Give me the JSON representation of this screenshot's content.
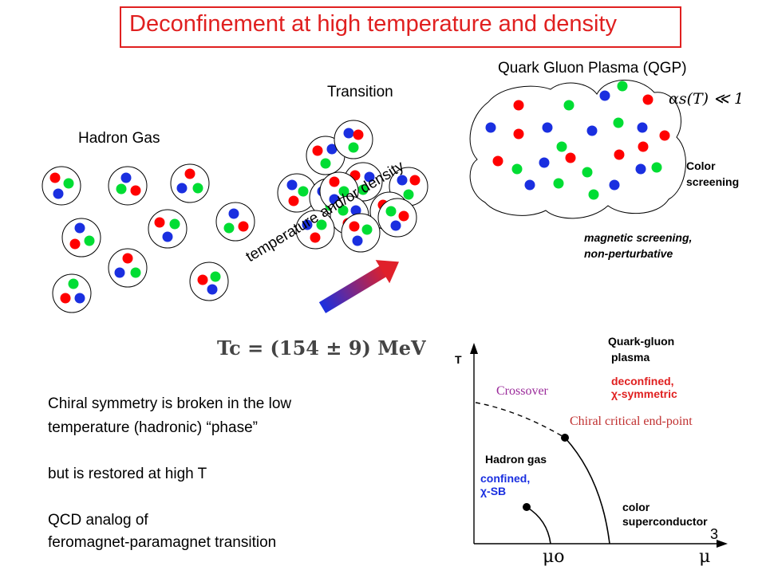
{
  "title": "Deconfinement at high temperature and density",
  "labels": {
    "hadron_gas": "Hadron Gas",
    "transition": "Transition",
    "qgp": "Quark Gluon Plasma (QGP)",
    "coupling": "αs(T) ≪ 1",
    "color_screening_1": "Color",
    "color_screening_2": "screening",
    "magnetic_1": "magnetic screening,",
    "magnetic_2": "non-perturbative",
    "arrow": "temperature and/or density",
    "tc": "Tc = (154 ± 9) MeV"
  },
  "text_block": {
    "line1": "Chiral symmetry is broken in the low",
    "line2": "temperature (hadronic)  “phase”",
    "line3": "but is restored at high T",
    "line4": "QCD analog of",
    "line5": " feromagnet-paramagnet transition"
  },
  "phase_diagram": {
    "axis_t": "T",
    "axis_mu": "μ",
    "mu0": "μo",
    "qgp_1": "Quark-gluon",
    "qgp_2": "plasma",
    "deconf_1": "deconfined,",
    "deconf_2": "χ-symmetric",
    "crossover": "Crossover",
    "endpoint": "Chiral critical end-point",
    "hadron_gas": "Hadron gas",
    "confined_1": "confined,",
    "confined_2": "χ-SB",
    "color_1": "color",
    "color_2": "superconductor"
  },
  "page_number": "3",
  "colors": {
    "red": "#ff0000",
    "green": "#00dd33",
    "blue": "#1a2fe0",
    "title": "#e02020",
    "deconf": "#e02020",
    "confined": "#1a2fe0",
    "crossover": "#9a2a9a",
    "endpoint": "#c03030"
  }
}
